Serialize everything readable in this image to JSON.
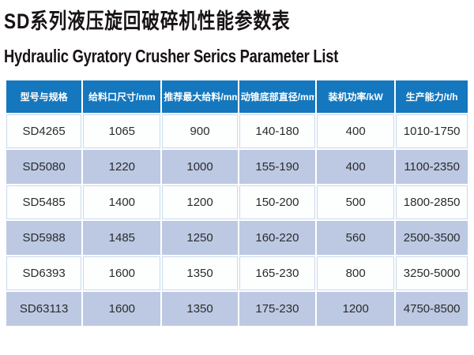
{
  "page": {
    "title_zh": "SD系列液压旋回破碎机性能参数表",
    "title_en": "Hydraulic Gyratory Crusher Serics Parameter List"
  },
  "table": {
    "headers": [
      "型号与规格",
      "给料口尺寸/mm",
      "推荐最大给料/mm",
      "动锥底部直径/mm",
      "装机功率/kW",
      "生产能力/t/h"
    ],
    "rows": [
      [
        "SD4265",
        "1065",
        "900",
        "140-180",
        "400",
        "1010-1750"
      ],
      [
        "SD5080",
        "1220",
        "1000",
        "155-190",
        "400",
        "1100-2350"
      ],
      [
        "SD5485",
        "1400",
        "1200",
        "150-200",
        "500",
        "1800-2850"
      ],
      [
        "SD5988",
        "1485",
        "1250",
        "160-220",
        "560",
        "2500-3500"
      ],
      [
        "SD6393",
        "1600",
        "1350",
        "165-230",
        "800",
        "3250-5000"
      ],
      [
        "SD63113",
        "1600",
        "1350",
        "175-230",
        "1200",
        "4750-8500"
      ]
    ]
  },
  "colors": {
    "header_bg": "#1577bd",
    "alt_row_bg": "#bdc9e3",
    "plain_row_border": "#c9daed",
    "title_text": "#181314"
  }
}
